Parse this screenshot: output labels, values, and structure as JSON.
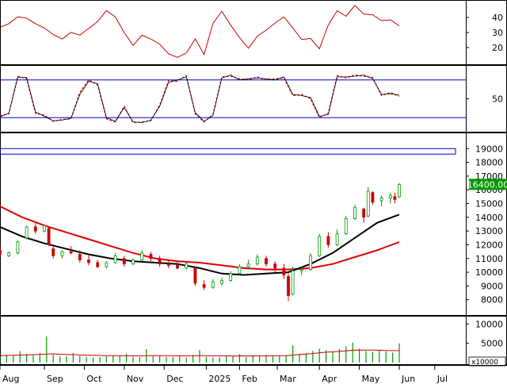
{
  "chart_data": [
    {
      "type": "line",
      "panel": "indicator-1",
      "ylim": [
        10,
        50
      ],
      "yticks": [
        20,
        30,
        40
      ],
      "series": [
        {
          "color": "#cc0000",
          "x": [
            0,
            4,
            8,
            12,
            16,
            20,
            24,
            28,
            32,
            36,
            40,
            44,
            48,
            52,
            56,
            60,
            64,
            68,
            72,
            76,
            80,
            84,
            88,
            92,
            96,
            100,
            104,
            108,
            112,
            116,
            120,
            124,
            128,
            132,
            136,
            140,
            144,
            148,
            152,
            156,
            160,
            164,
            168,
            172,
            176,
            180
          ],
          "values": [
            33.4,
            35.9,
            40.5,
            39.6,
            35.9,
            32.9,
            28.7,
            25.7,
            30.1,
            28.3,
            32.7,
            37.3,
            44.6,
            40.3,
            30.0,
            21.5,
            28.2,
            25.7,
            22.3,
            15.9,
            13.5,
            16.4,
            25.8,
            15.4,
            36.0,
            44.1,
            34.9,
            26.7,
            19.6,
            27.6,
            31.6,
            36.3,
            40.3,
            33.1,
            25.3,
            26.1,
            19.2,
            35.0,
            44.4,
            40.8,
            48.0,
            42.2,
            41.8,
            37.9,
            38.4,
            34.4
          ]
        }
      ]
    },
    {
      "type": "line",
      "panel": "indicator-2",
      "ylim": [
        0,
        100
      ],
      "yticks": [
        50
      ],
      "levels": [
        80,
        20
      ],
      "series": [
        {
          "color": "#cc0000",
          "dash": "dashed",
          "x": [
            0,
            4,
            8,
            12,
            16,
            20,
            24,
            28,
            32,
            36,
            40,
            44,
            48,
            52,
            56,
            60,
            64,
            68,
            72,
            76,
            80,
            84,
            88,
            92,
            96,
            100,
            104,
            108,
            112,
            116,
            120,
            124,
            128,
            132,
            136,
            140,
            144,
            148,
            152,
            156,
            160,
            164,
            168,
            172,
            176,
            180
          ],
          "values": [
            23,
            26,
            86,
            82,
            27,
            24,
            14,
            17,
            18,
            60,
            80,
            72,
            18,
            13,
            38,
            12,
            13,
            15,
            40,
            79,
            78,
            87,
            26,
            13,
            25,
            85,
            86,
            82,
            80,
            85,
            80,
            82,
            83,
            55,
            57,
            50,
            20,
            27,
            87,
            83,
            88,
            86,
            84,
            55,
            60,
            54
          ]
        },
        {
          "color": "#000000",
          "dash": "solid",
          "x": [
            0,
            4,
            8,
            12,
            16,
            20,
            24,
            28,
            32,
            36,
            40,
            44,
            48,
            52,
            56,
            60,
            64,
            68,
            72,
            76,
            80,
            84,
            88,
            92,
            96,
            100,
            104,
            108,
            112,
            116,
            120,
            124,
            128,
            132,
            136,
            140,
            144,
            148,
            152,
            156,
            160,
            164,
            168,
            172,
            176,
            180
          ],
          "values": [
            21,
            27,
            84,
            84,
            29,
            22,
            15,
            16,
            19,
            57,
            78,
            74,
            20,
            14,
            36,
            13,
            12,
            16,
            38,
            76,
            80,
            85,
            28,
            14,
            23,
            83,
            88,
            80,
            82,
            83,
            82,
            80,
            85,
            57,
            55,
            52,
            22,
            25,
            85,
            85,
            86,
            88,
            82,
            57,
            58,
            56
          ]
        }
      ]
    },
    {
      "type": "candlestick",
      "panel": "price",
      "ylim": [
        7000,
        20000
      ],
      "yticks": [
        8000,
        9000,
        10000,
        11000,
        12000,
        13000,
        14000,
        15000,
        16000,
        17000,
        18000,
        19000
      ],
      "last_price": "16400.00",
      "band": [
        18600,
        19000
      ],
      "candles": [
        {
          "x": 0,
          "o": 11600,
          "h": 11900,
          "l": 11100,
          "c": 11300
        },
        {
          "x": 4,
          "o": 11200,
          "h": 11500,
          "l": 11100,
          "c": 11400
        },
        {
          "x": 8,
          "o": 11400,
          "h": 12300,
          "l": 11300,
          "c": 12200
        },
        {
          "x": 12,
          "o": 12500,
          "h": 13400,
          "l": 12400,
          "c": 13300
        },
        {
          "x": 16,
          "o": 13300,
          "h": 13600,
          "l": 12800,
          "c": 13000
        },
        {
          "x": 20,
          "o": 13000,
          "h": 13500,
          "l": 12900,
          "c": 13400
        },
        {
          "x": 22,
          "o": 13200,
          "h": 13300,
          "l": 11900,
          "c": 12000
        },
        {
          "x": 24,
          "o": 11700,
          "h": 11900,
          "l": 11000,
          "c": 11200
        },
        {
          "x": 28,
          "o": 11200,
          "h": 11600,
          "l": 11000,
          "c": 11500
        },
        {
          "x": 32,
          "o": 11500,
          "h": 11900,
          "l": 11300,
          "c": 11400
        },
        {
          "x": 36,
          "o": 11300,
          "h": 11600,
          "l": 10700,
          "c": 10900
        },
        {
          "x": 40,
          "o": 10900,
          "h": 11200,
          "l": 10500,
          "c": 10700
        },
        {
          "x": 44,
          "o": 10700,
          "h": 10900,
          "l": 10300,
          "c": 10400
        },
        {
          "x": 48,
          "o": 10400,
          "h": 10800,
          "l": 10300,
          "c": 10700
        },
        {
          "x": 52,
          "o": 10700,
          "h": 11400,
          "l": 10600,
          "c": 11200
        },
        {
          "x": 56,
          "o": 11000,
          "h": 11200,
          "l": 10400,
          "c": 10600
        },
        {
          "x": 60,
          "o": 10600,
          "h": 11000,
          "l": 10500,
          "c": 10900
        },
        {
          "x": 64,
          "o": 10900,
          "h": 11600,
          "l": 10800,
          "c": 11400
        },
        {
          "x": 68,
          "o": 11300,
          "h": 11500,
          "l": 10800,
          "c": 11000
        },
        {
          "x": 72,
          "o": 11000,
          "h": 11200,
          "l": 10400,
          "c": 10600
        },
        {
          "x": 76,
          "o": 10600,
          "h": 10900,
          "l": 10300,
          "c": 10500
        },
        {
          "x": 80,
          "o": 10500,
          "h": 10800,
          "l": 10200,
          "c": 10300
        },
        {
          "x": 84,
          "o": 10300,
          "h": 10700,
          "l": 10200,
          "c": 10600
        },
        {
          "x": 88,
          "o": 10300,
          "h": 10400,
          "l": 9000,
          "c": 9200
        },
        {
          "x": 92,
          "o": 9100,
          "h": 9400,
          "l": 8700,
          "c": 8900
        },
        {
          "x": 96,
          "o": 8900,
          "h": 9500,
          "l": 8800,
          "c": 9300
        },
        {
          "x": 100,
          "o": 9200,
          "h": 9600,
          "l": 9000,
          "c": 9400
        },
        {
          "x": 104,
          "o": 9400,
          "h": 10100,
          "l": 9300,
          "c": 9900
        },
        {
          "x": 108,
          "o": 9900,
          "h": 10600,
          "l": 9800,
          "c": 10400
        },
        {
          "x": 112,
          "o": 10400,
          "h": 10900,
          "l": 10200,
          "c": 10600
        },
        {
          "x": 116,
          "o": 10600,
          "h": 11300,
          "l": 10500,
          "c": 11100
        },
        {
          "x": 120,
          "o": 11000,
          "h": 11200,
          "l": 10400,
          "c": 10600
        },
        {
          "x": 124,
          "o": 10600,
          "h": 10800,
          "l": 10000,
          "c": 10300
        },
        {
          "x": 128,
          "o": 10300,
          "h": 10600,
          "l": 9500,
          "c": 9800
        },
        {
          "x": 130,
          "o": 9700,
          "h": 9900,
          "l": 7900,
          "c": 8300
        },
        {
          "x": 132,
          "o": 8400,
          "h": 10400,
          "l": 8300,
          "c": 10100
        },
        {
          "x": 136,
          "o": 10100,
          "h": 10400,
          "l": 9800,
          "c": 10200
        },
        {
          "x": 140,
          "o": 10200,
          "h": 11400,
          "l": 10100,
          "c": 11200
        },
        {
          "x": 144,
          "o": 11200,
          "h": 12800,
          "l": 11100,
          "c": 12600
        },
        {
          "x": 148,
          "o": 12600,
          "h": 12900,
          "l": 11800,
          "c": 12000
        },
        {
          "x": 152,
          "o": 12000,
          "h": 13100,
          "l": 11900,
          "c": 12800
        },
        {
          "x": 156,
          "o": 12800,
          "h": 14100,
          "l": 12700,
          "c": 13900
        },
        {
          "x": 160,
          "o": 13900,
          "h": 14900,
          "l": 13800,
          "c": 14700
        },
        {
          "x": 164,
          "o": 14600,
          "h": 14700,
          "l": 13600,
          "c": 14000
        },
        {
          "x": 166,
          "o": 14100,
          "h": 16200,
          "l": 14000,
          "c": 15900
        },
        {
          "x": 168,
          "o": 15800,
          "h": 15900,
          "l": 14900,
          "c": 15100
        },
        {
          "x": 172,
          "o": 15200,
          "h": 15600,
          "l": 14800,
          "c": 15400
        },
        {
          "x": 176,
          "o": 15400,
          "h": 15800,
          "l": 15000,
          "c": 15600
        },
        {
          "x": 178,
          "o": 15500,
          "h": 15800,
          "l": 15000,
          "c": 15300
        },
        {
          "x": 180,
          "o": 15500,
          "h": 16500,
          "l": 15400,
          "c": 16400
        }
      ],
      "moving_averages": [
        {
          "color": "#dd0000",
          "x": [
            0,
            10,
            20,
            30,
            40,
            50,
            60,
            70,
            80,
            90,
            100,
            110,
            120,
            130,
            140,
            150,
            160,
            170,
            180
          ],
          "values": [
            14800,
            14000,
            13400,
            12900,
            12400,
            11900,
            11400,
            11000,
            10800,
            10700,
            10500,
            10300,
            10200,
            10200,
            10300,
            10600,
            11100,
            11600,
            12200
          ]
        },
        {
          "color": "#000000",
          "x": [
            0,
            10,
            20,
            30,
            40,
            50,
            60,
            70,
            80,
            90,
            100,
            110,
            120,
            130,
            140,
            150,
            160,
            170,
            180
          ],
          "values": [
            13300,
            12600,
            12100,
            11700,
            11300,
            11000,
            10800,
            10700,
            10600,
            10300,
            9900,
            9800,
            9900,
            10000,
            10600,
            11400,
            12500,
            13600,
            14200
          ]
        }
      ]
    },
    {
      "type": "bar",
      "panel": "volume",
      "unit_label": "x10000",
      "ylim": [
        0,
        11500
      ],
      "yticks": [
        5000,
        10000
      ],
      "x": [
        0,
        3,
        6,
        9,
        12,
        15,
        18,
        21,
        24,
        27,
        30,
        33,
        36,
        39,
        42,
        45,
        48,
        51,
        54,
        57,
        60,
        63,
        66,
        69,
        72,
        75,
        78,
        81,
        84,
        87,
        90,
        93,
        96,
        99,
        102,
        105,
        108,
        111,
        114,
        117,
        120,
        123,
        126,
        129,
        132,
        135,
        138,
        141,
        144,
        147,
        150,
        153,
        156,
        159,
        162,
        165,
        168,
        171,
        174,
        177,
        180
      ],
      "values": [
        1500,
        2000,
        1800,
        3000,
        2200,
        1900,
        2500,
        6800,
        2000,
        1600,
        1700,
        2500,
        1800,
        1500,
        1300,
        1400,
        1600,
        1800,
        1700,
        2300,
        1500,
        1400,
        3500,
        1600,
        1700,
        1500,
        1400,
        1800,
        1300,
        2000,
        3200,
        1500,
        1300,
        1400,
        1600,
        1700,
        2200,
        1500,
        1800,
        1700,
        2000,
        1600,
        1800,
        2000,
        4500,
        2200,
        2500,
        3000,
        3600,
        3200,
        2800,
        3500,
        4200,
        5200,
        3600,
        3000,
        2800,
        3200,
        2900,
        2600,
        5000
      ],
      "ma_color": "#cc0000",
      "ma_values": [
        1800,
        1850,
        1900,
        1950,
        2000,
        2050,
        2100,
        2200,
        2250,
        2150,
        2100,
        2050,
        2000,
        1950,
        1900,
        1850,
        1800,
        1780,
        1760,
        1750,
        1740,
        1730,
        1800,
        1820,
        1800,
        1780,
        1760,
        1750,
        1730,
        1750,
        1800,
        1790,
        1770,
        1750,
        1740,
        1730,
        1740,
        1730,
        1740,
        1730,
        1740,
        1740,
        1760,
        1780,
        1950,
        2100,
        2200,
        2350,
        2550,
        2700,
        2800,
        2900,
        3050,
        3200,
        3250,
        3250,
        3230,
        3200,
        3150,
        3100,
        3100
      ]
    }
  ],
  "x_axis": {
    "labels": [
      {
        "text": "Aug",
        "x": 0
      },
      {
        "text": "Sep",
        "x": 20
      },
      {
        "text": "Oct",
        "x": 38
      },
      {
        "text": "Nov",
        "x": 56
      },
      {
        "text": "Dec",
        "x": 74
      },
      {
        "text": "2025",
        "x": 93
      },
      {
        "text": "Feb",
        "x": 108
      },
      {
        "text": "Mar",
        "x": 125
      },
      {
        "text": "Apr",
        "x": 144
      },
      {
        "text": "May",
        "x": 162
      },
      {
        "text": "Jun",
        "x": 180
      },
      {
        "text": "Jul",
        "x": 196
      }
    ],
    "range": [
      0,
      210
    ]
  }
}
